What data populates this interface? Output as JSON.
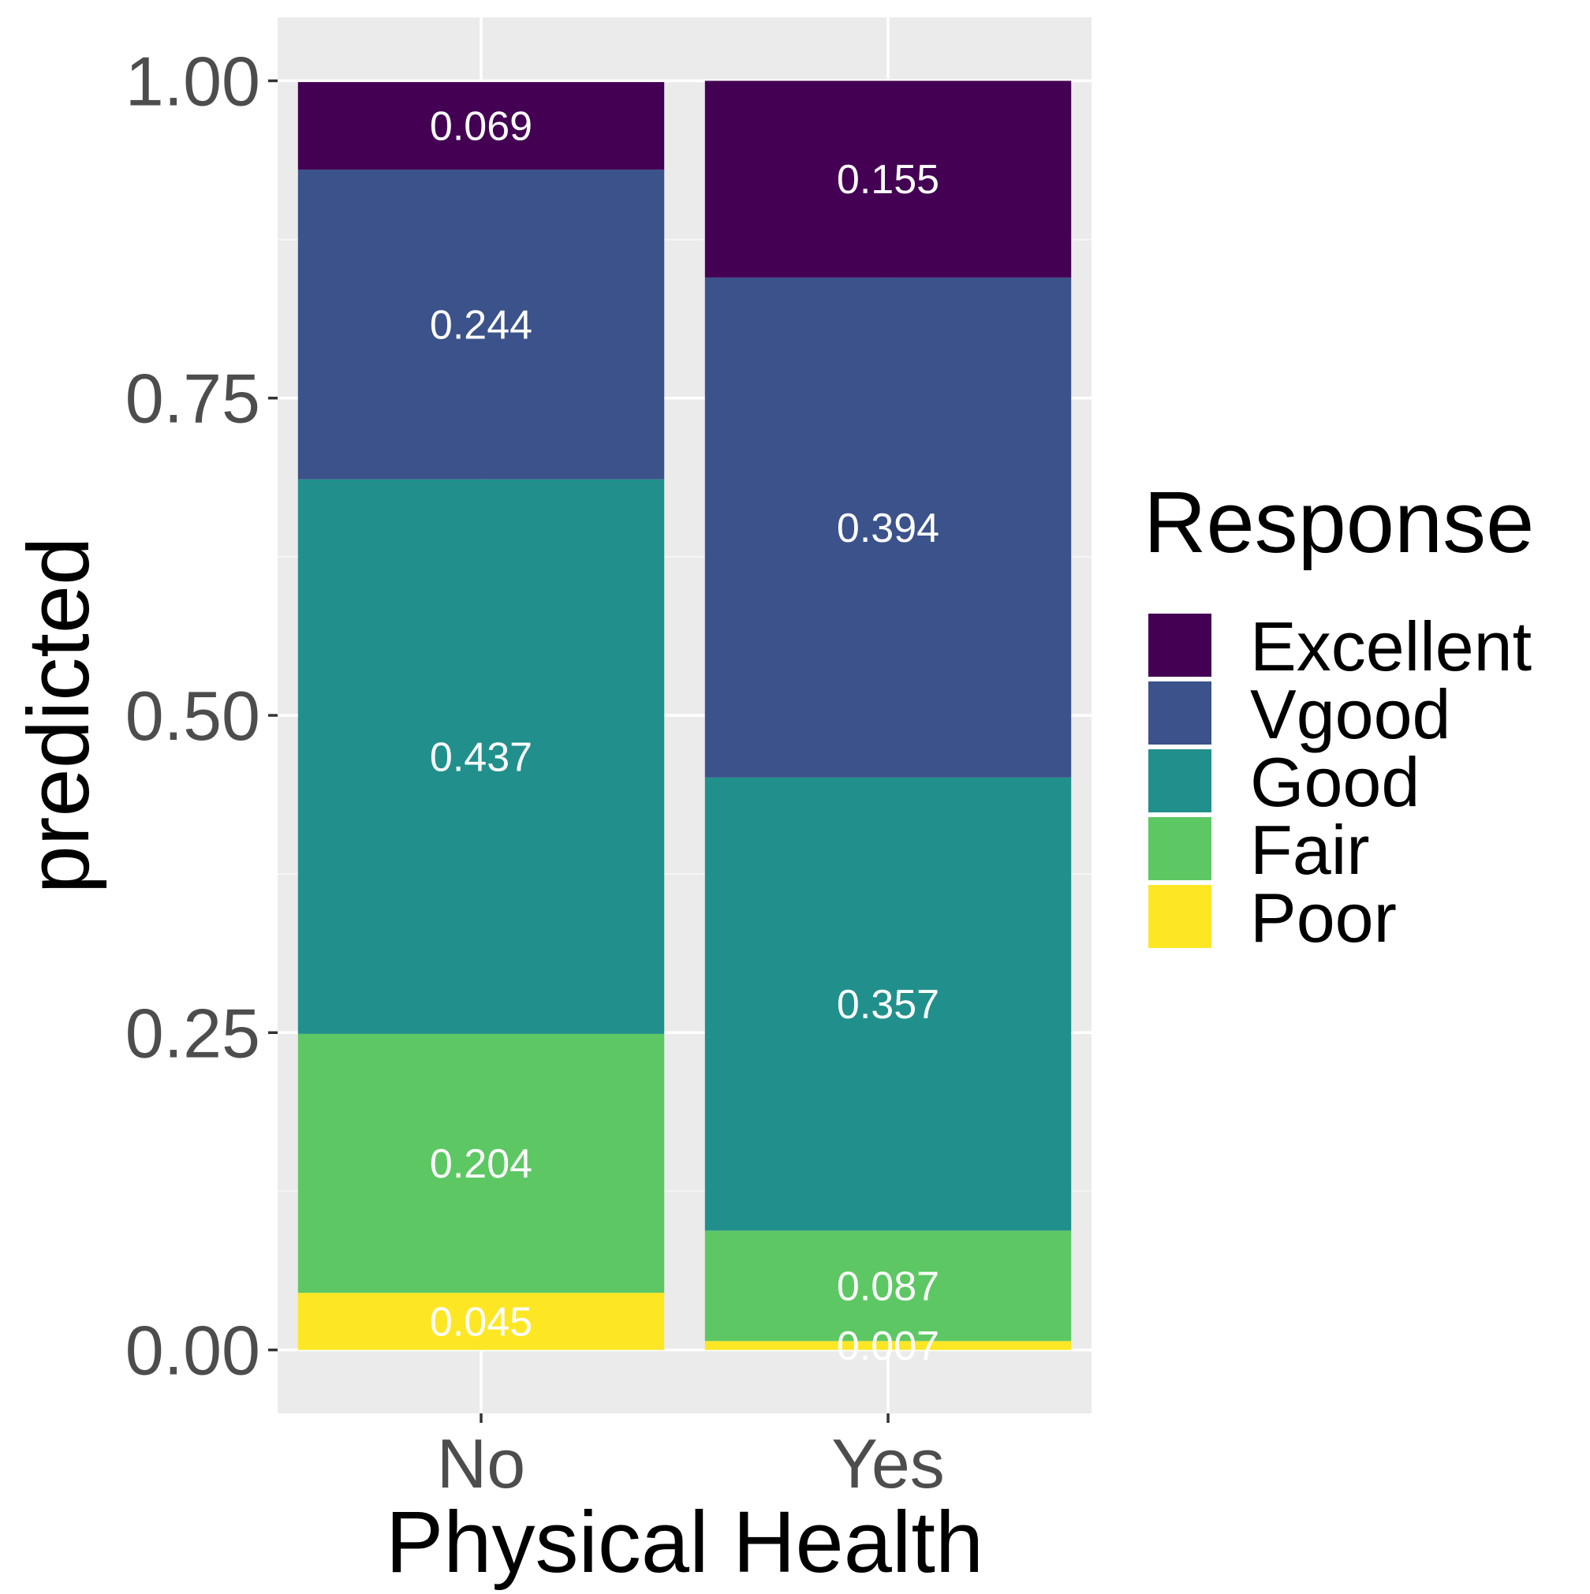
{
  "chart_data": {
    "type": "bar",
    "stacked": true,
    "xlabel": "Physical Health",
    "ylabel": "predicted",
    "categories": [
      "No",
      "Yes"
    ],
    "ylim": [
      -0.05,
      1.05
    ],
    "yticks": [
      0.0,
      0.25,
      0.5,
      0.75,
      1.0
    ],
    "ytick_labels": [
      "0.00",
      "0.25",
      "0.50",
      "0.75",
      "1.00"
    ],
    "grid": true,
    "legend": {
      "title": "Response",
      "position": "right"
    },
    "series": [
      {
        "name": "Poor",
        "color": "#FDE725",
        "values": [
          0.045,
          0.007
        ],
        "labels": [
          "0.045",
          "0.007"
        ]
      },
      {
        "name": "Fair",
        "color": "#5DC863",
        "values": [
          0.204,
          0.087
        ],
        "labels": [
          "0.204",
          "0.087"
        ]
      },
      {
        "name": "Good",
        "color": "#21908C",
        "values": [
          0.437,
          0.357
        ],
        "labels": [
          "0.437",
          "0.357"
        ]
      },
      {
        "name": "Vgood",
        "color": "#3B528B",
        "values": [
          0.244,
          0.394
        ],
        "labels": [
          "0.244",
          "0.394"
        ]
      },
      {
        "name": "Excellent",
        "color": "#440154",
        "values": [
          0.069,
          0.155
        ],
        "labels": [
          "0.069",
          "0.155"
        ]
      }
    ],
    "legend_order": [
      "Excellent",
      "Vgood",
      "Good",
      "Fair",
      "Poor"
    ]
  },
  "colors": {
    "panel_background": "#EBEBEB",
    "grid_major": "#FFFFFF",
    "grid_minor": "#F5F5F5"
  }
}
